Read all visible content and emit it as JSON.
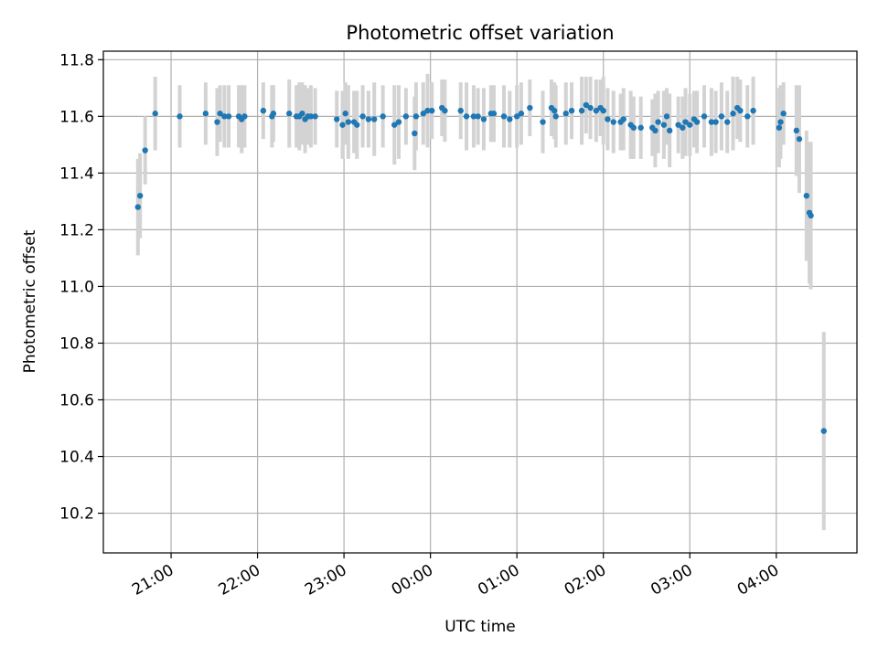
{
  "chart_data": {
    "type": "scatter",
    "title": "Photometric offset variation",
    "xlabel": "UTC time",
    "ylabel": "Photometric offset",
    "grid": true,
    "x_ticks": [
      "21:00",
      "22:00",
      "23:00",
      "00:00",
      "01:00",
      "02:00",
      "03:00",
      "04:00"
    ],
    "y_ticks": [
      "10.2",
      "10.4",
      "10.6",
      "10.8",
      "11.0",
      "11.2",
      "11.4",
      "11.6",
      "11.8"
    ],
    "xlim": [
      "2000-01-01T20:13:00",
      "2000-01-02T04:56:00"
    ],
    "ylim": [
      10.06,
      11.83
    ],
    "colors": {
      "points": "#1f77b4",
      "errorbars": "#d3d3d3",
      "grid": "#b0b0b0"
    },
    "series": [
      {
        "x": [
          "2000-01-01T20:37:00",
          "2000-01-01T20:38:30",
          "2000-01-01T20:42:00",
          "2000-01-01T20:49:00",
          "2000-01-01T21:06:00",
          "2000-01-01T21:24:00",
          "2000-01-01T21:32:00",
          "2000-01-01T21:34:00",
          "2000-01-01T21:37:00",
          "2000-01-01T21:40:00",
          "2000-01-01T21:47:00",
          "2000-01-01T21:49:00",
          "2000-01-01T21:51:00",
          "2000-01-01T22:04:00",
          "2000-01-01T22:10:00",
          "2000-01-01T22:11:00",
          "2000-01-01T22:22:00",
          "2000-01-01T22:27:00",
          "2000-01-01T22:29:00",
          "2000-01-01T22:31:00",
          "2000-01-01T22:33:00",
          "2000-01-01T22:35:00",
          "2000-01-01T22:37:00",
          "2000-01-01T22:40:00",
          "2000-01-01T22:55:00",
          "2000-01-01T22:59:00",
          "2000-01-01T23:01:00",
          "2000-01-01T23:03:00",
          "2000-01-01T23:07:00",
          "2000-01-01T23:09:00",
          "2000-01-01T23:13:00",
          "2000-01-01T23:17:00",
          "2000-01-01T23:21:00",
          "2000-01-01T23:27:00",
          "2000-01-01T23:35:00",
          "2000-01-01T23:38:00",
          "2000-01-01T23:43:00",
          "2000-01-01T23:49:00",
          "2000-01-01T23:50:00",
          "2000-01-01T23:55:00",
          "2000-01-01T23:58:00",
          "2000-01-02T00:01:00",
          "2000-01-02T00:08:00",
          "2000-01-02T00:10:00",
          "2000-01-02T00:21:00",
          "2000-01-02T00:25:00",
          "2000-01-02T00:30:00",
          "2000-01-02T00:33:00",
          "2000-01-02T00:37:00",
          "2000-01-02T00:42:00",
          "2000-01-02T00:44:00",
          "2000-01-02T00:51:00",
          "2000-01-02T00:55:00",
          "2000-01-02T01:00:00",
          "2000-01-02T01:03:00",
          "2000-01-02T01:09:00",
          "2000-01-02T01:18:00",
          "2000-01-02T01:24:00",
          "2000-01-02T01:26:00",
          "2000-01-02T01:27:00",
          "2000-01-02T01:34:00",
          "2000-01-02T01:38:00",
          "2000-01-02T01:45:00",
          "2000-01-02T01:48:00",
          "2000-01-02T01:51:00",
          "2000-01-02T01:55:00",
          "2000-01-02T01:58:00",
          "2000-01-02T02:00:00",
          "2000-01-02T02:03:00",
          "2000-01-02T02:07:00",
          "2000-01-02T02:12:00",
          "2000-01-02T02:14:00",
          "2000-01-02T02:19:00",
          "2000-01-02T02:21:00",
          "2000-01-02T02:26:00",
          "2000-01-02T02:34:00",
          "2000-01-02T02:36:00",
          "2000-01-02T02:38:00",
          "2000-01-02T02:42:00",
          "2000-01-02T02:44:00",
          "2000-01-02T02:46:00",
          "2000-01-02T02:52:00",
          "2000-01-02T02:55:00",
          "2000-01-02T02:57:00",
          "2000-01-02T03:00:00",
          "2000-01-02T03:03:00",
          "2000-01-02T03:05:00",
          "2000-01-02T03:10:00",
          "2000-01-02T03:15:00",
          "2000-01-02T03:18:00",
          "2000-01-02T03:22:00",
          "2000-01-02T03:26:00",
          "2000-01-02T03:30:00",
          "2000-01-02T03:33:00",
          "2000-01-02T03:35:00",
          "2000-01-02T03:40:00",
          "2000-01-02T03:44:00",
          "2000-01-02T04:02:00",
          "2000-01-02T04:03:00",
          "2000-01-02T04:05:00",
          "2000-01-02T04:14:00",
          "2000-01-02T04:16:00",
          "2000-01-02T04:21:00",
          "2000-01-02T04:23:00",
          "2000-01-02T04:24:00",
          "2000-01-02T04:33:00"
        ],
        "y": [
          11.28,
          11.32,
          11.48,
          11.61,
          11.6,
          11.61,
          11.58,
          11.61,
          11.6,
          11.6,
          11.6,
          11.59,
          11.6,
          11.62,
          11.6,
          11.61,
          11.61,
          11.6,
          11.6,
          11.61,
          11.59,
          11.6,
          11.6,
          11.6,
          11.59,
          11.57,
          11.61,
          11.58,
          11.58,
          11.57,
          11.6,
          11.59,
          11.59,
          11.6,
          11.57,
          11.58,
          11.6,
          11.54,
          11.6,
          11.61,
          11.62,
          11.62,
          11.63,
          11.62,
          11.62,
          11.6,
          11.6,
          11.6,
          11.59,
          11.61,
          11.61,
          11.6,
          11.59,
          11.6,
          11.61,
          11.63,
          11.58,
          11.63,
          11.62,
          11.6,
          11.61,
          11.62,
          11.62,
          11.64,
          11.63,
          11.62,
          11.63,
          11.62,
          11.59,
          11.58,
          11.58,
          11.59,
          11.57,
          11.56,
          11.56,
          11.56,
          11.55,
          11.58,
          11.57,
          11.6,
          11.55,
          11.57,
          11.56,
          11.58,
          11.57,
          11.59,
          11.58,
          11.6,
          11.58,
          11.58,
          11.6,
          11.58,
          11.61,
          11.63,
          11.62,
          11.6,
          11.62,
          11.56,
          11.58,
          11.61,
          11.55,
          11.52,
          11.32,
          11.26,
          11.25,
          10.49
        ],
        "yerr": [
          0.17,
          0.15,
          0.12,
          0.13,
          0.11,
          0.11,
          0.12,
          0.1,
          0.11,
          0.11,
          0.11,
          0.12,
          0.11,
          0.1,
          0.11,
          0.1,
          0.12,
          0.11,
          0.12,
          0.11,
          0.12,
          0.1,
          0.11,
          0.1,
          0.1,
          0.12,
          0.11,
          0.13,
          0.11,
          0.12,
          0.11,
          0.1,
          0.13,
          0.11,
          0.14,
          0.13,
          0.1,
          0.13,
          0.12,
          0.11,
          0.13,
          0.1,
          0.1,
          0.11,
          0.1,
          0.12,
          0.11,
          0.1,
          0.11,
          0.1,
          0.1,
          0.11,
          0.1,
          0.11,
          0.11,
          0.1,
          0.11,
          0.1,
          0.1,
          0.11,
          0.11,
          0.1,
          0.12,
          0.1,
          0.11,
          0.11,
          0.1,
          0.12,
          0.11,
          0.11,
          0.1,
          0.11,
          0.12,
          0.11,
          0.11,
          0.1,
          0.13,
          0.11,
          0.12,
          0.1,
          0.13,
          0.1,
          0.11,
          0.12,
          0.11,
          0.1,
          0.11,
          0.11,
          0.12,
          0.11,
          0.12,
          0.11,
          0.13,
          0.11,
          0.11,
          0.11,
          0.12,
          0.14,
          0.13,
          0.11,
          0.16,
          0.19,
          0.23,
          0.25,
          0.26,
          0.35
        ]
      }
    ]
  }
}
